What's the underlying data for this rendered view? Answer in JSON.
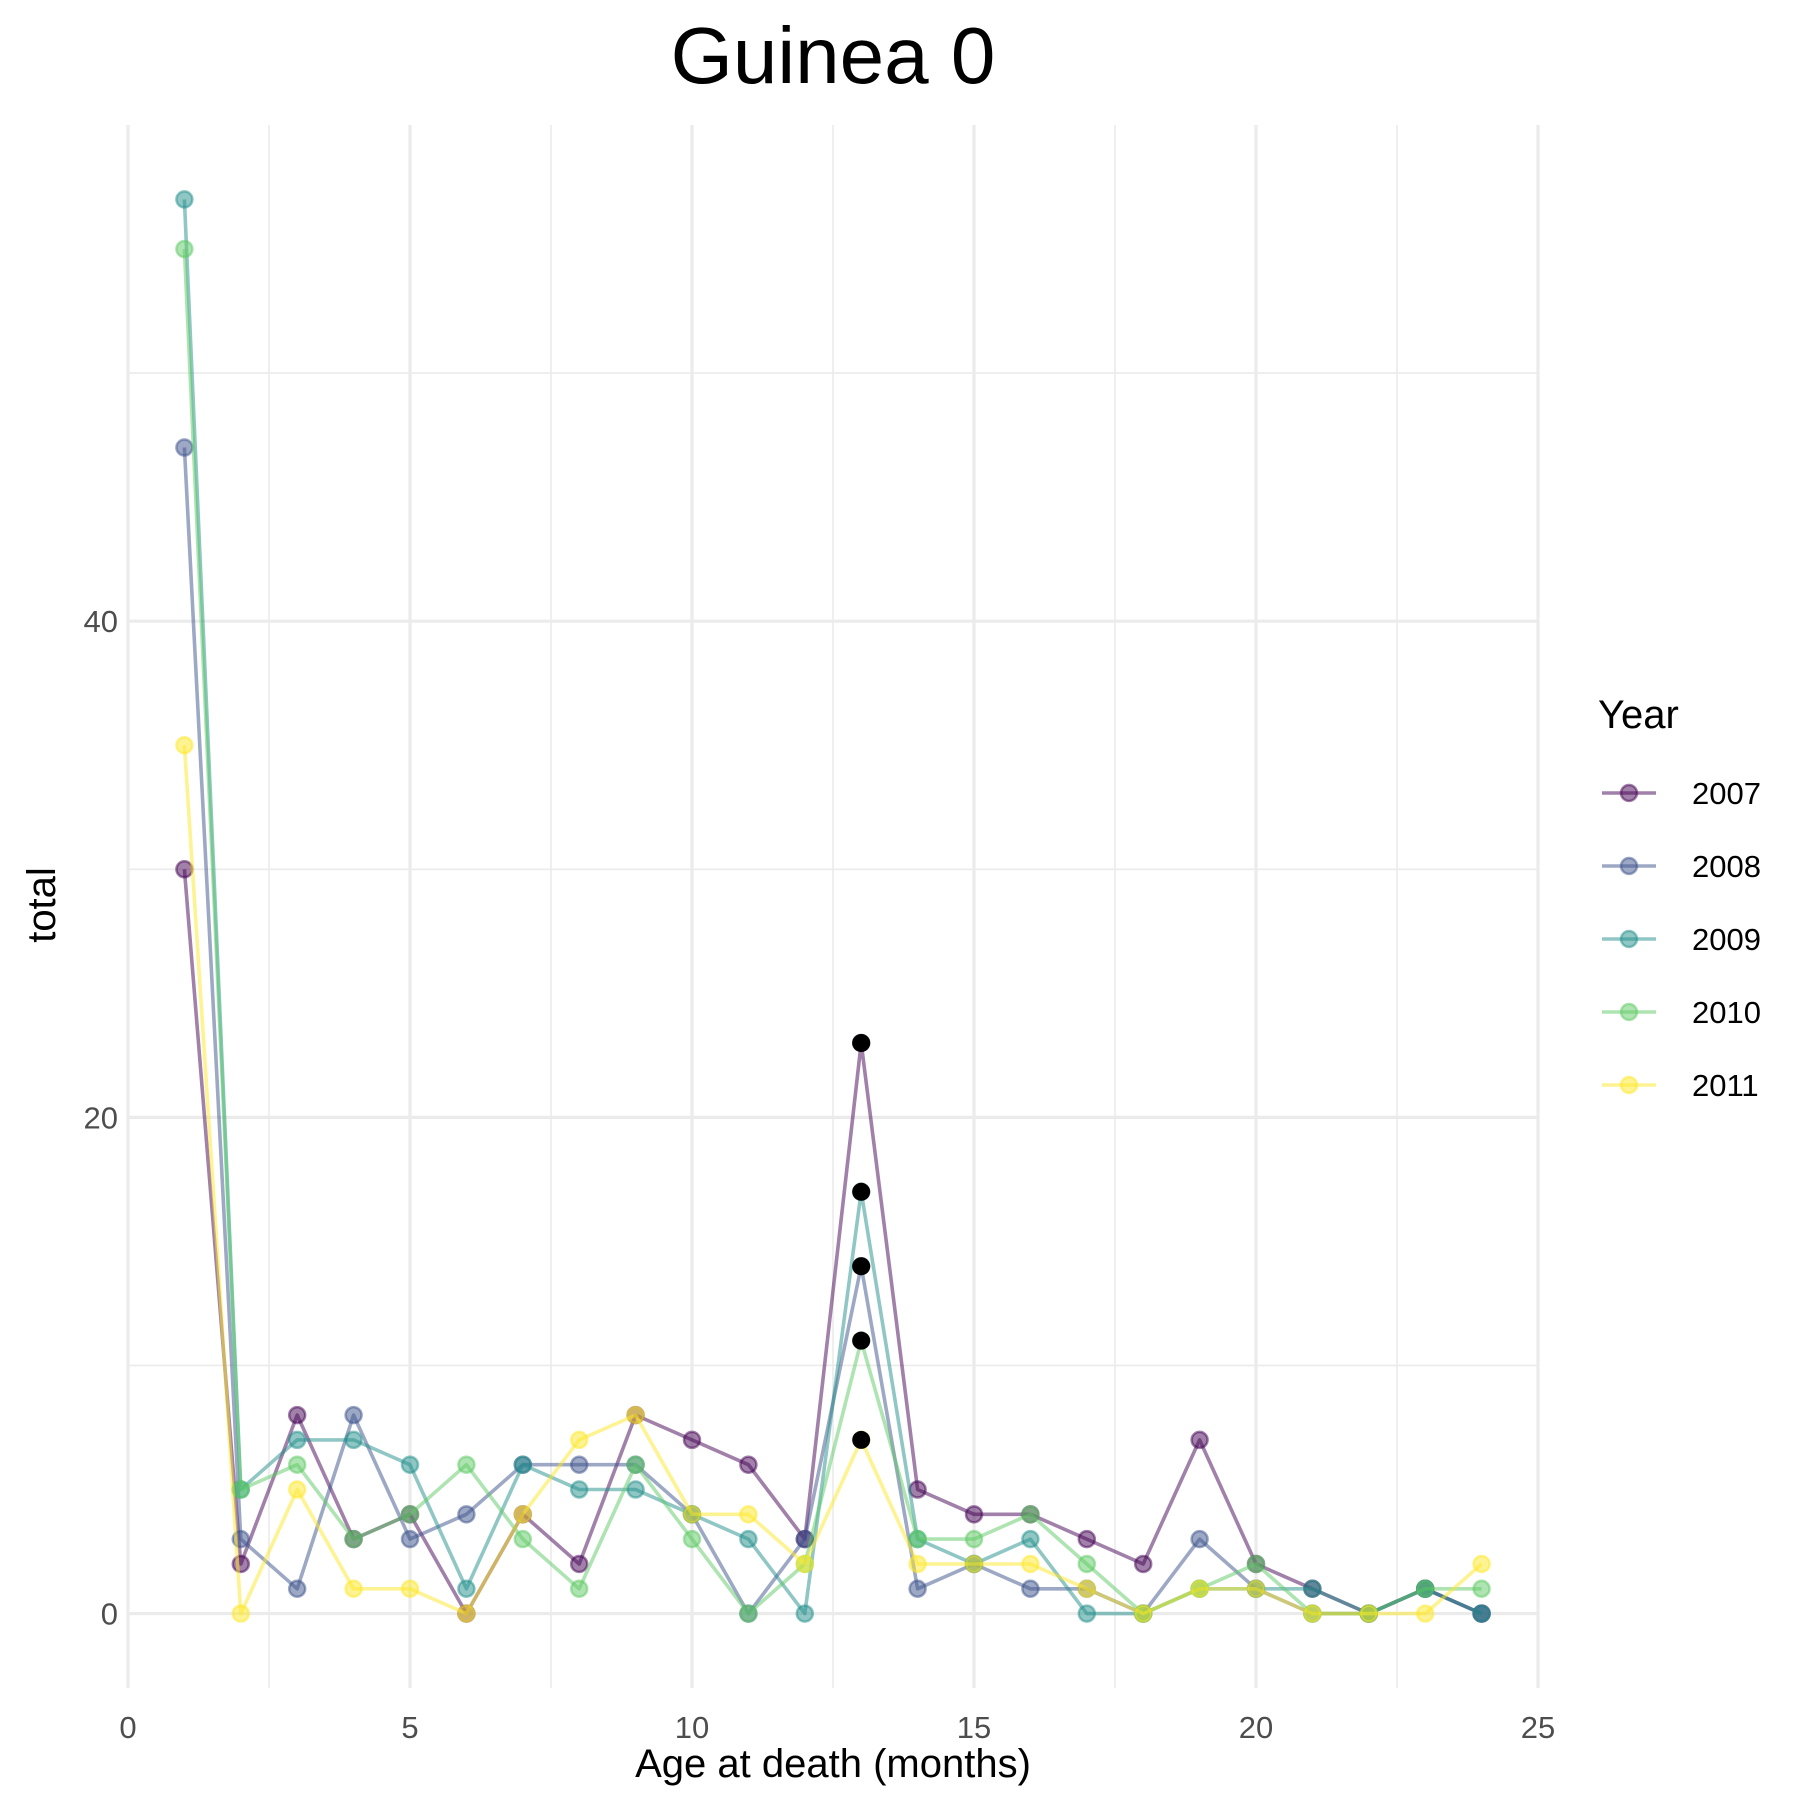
{
  "chart_data": {
    "type": "line",
    "title": "Guinea 0",
    "xlabel": "Age at death (months)",
    "ylabel": "total",
    "xlim": [
      0,
      25
    ],
    "ylim": [
      -3,
      60
    ],
    "x_ticks": [
      0,
      5,
      10,
      15,
      20,
      25
    ],
    "x_tick_labels": [
      "0",
      "5",
      "10",
      "15",
      "20",
      "25"
    ],
    "y_ticks": [
      0,
      20,
      40
    ],
    "y_tick_labels": [
      "0",
      "20",
      "40"
    ],
    "x_minor_ticks": [
      2.5,
      7.5,
      12.5,
      17.5,
      22.5
    ],
    "y_minor_ticks": [
      10,
      30,
      50
    ],
    "grid": true,
    "legend": {
      "title": "Year",
      "position": "right"
    },
    "x": [
      1,
      2,
      3,
      4,
      5,
      6,
      7,
      8,
      9,
      10,
      11,
      12,
      13,
      14,
      15,
      16,
      17,
      18,
      19,
      20,
      21,
      22,
      23,
      24
    ],
    "series": [
      {
        "name": "2007",
        "color": "#440154",
        "values": [
          30,
          2,
          8,
          3,
          4,
          0,
          4,
          2,
          8,
          7,
          6,
          3,
          23,
          5,
          4,
          4,
          3,
          2,
          7,
          2,
          1,
          0,
          1,
          0
        ]
      },
      {
        "name": "2008",
        "color": "#3b528b",
        "values": [
          47,
          3,
          1,
          8,
          3,
          4,
          6,
          6,
          6,
          4,
          0,
          3,
          14,
          1,
          2,
          1,
          1,
          0,
          3,
          1,
          0,
          0,
          1,
          0
        ]
      },
      {
        "name": "2009",
        "color": "#21908c",
        "values": [
          57,
          5,
          7,
          7,
          6,
          1,
          6,
          5,
          5,
          4,
          3,
          0,
          17,
          3,
          2,
          3,
          0,
          0,
          1,
          1,
          1,
          0,
          1,
          0
        ]
      },
      {
        "name": "2010",
        "color": "#5dc963",
        "values": [
          55,
          5,
          6,
          3,
          4,
          6,
          3,
          1,
          6,
          3,
          0,
          2,
          11,
          3,
          3,
          4,
          2,
          0,
          1,
          2,
          0,
          0,
          1,
          1
        ]
      },
      {
        "name": "2011",
        "color": "#fde725",
        "values": [
          35,
          0,
          5,
          1,
          1,
          0,
          4,
          7,
          8,
          4,
          4,
          2,
          7,
          2,
          2,
          2,
          1,
          0,
          1,
          1,
          0,
          0,
          0,
          2
        ]
      }
    ],
    "highlighted_points": [
      {
        "x": 13,
        "y": 23
      },
      {
        "x": 13,
        "y": 17
      },
      {
        "x": 13,
        "y": 14
      },
      {
        "x": 13,
        "y": 11
      },
      {
        "x": 13,
        "y": 7
      }
    ]
  }
}
